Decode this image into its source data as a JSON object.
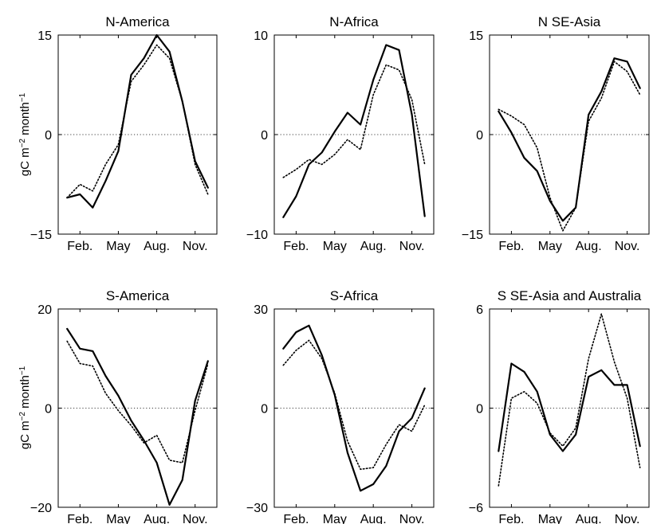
{
  "ylabel_main": "gC m",
  "ylabel_sup1": "−2",
  "ylabel_mid": " month",
  "ylabel_sup2": "−1",
  "x_tick_labels": [
    "Feb.",
    "May",
    "Aug.",
    "Nov."
  ],
  "x_tick_months": [
    2,
    5,
    8,
    11
  ],
  "chart_data": [
    {
      "type": "line",
      "title": "N-America",
      "x": [
        1,
        2,
        3,
        4,
        5,
        6,
        7,
        8,
        9,
        10,
        11,
        12
      ],
      "ylim": [
        -15,
        15
      ],
      "yticks": [
        -15,
        0,
        15
      ],
      "ytick_labels": [
        "−15",
        "0",
        "15"
      ],
      "series": [
        {
          "style": "solid",
          "values": [
            -9.5,
            -9,
            -11,
            -7,
            -2.5,
            9,
            11.5,
            15,
            12.5,
            5,
            -4,
            -8
          ]
        },
        {
          "style": "dotted",
          "values": [
            -9.5,
            -7.5,
            -8.5,
            -4.5,
            -1.5,
            8,
            10.5,
            13.5,
            11.5,
            5,
            -4.5,
            -9
          ]
        }
      ]
    },
    {
      "type": "line",
      "title": "N-Africa",
      "x": [
        1,
        2,
        3,
        4,
        5,
        6,
        7,
        8,
        9,
        10,
        11,
        12
      ],
      "ylim": [
        -10,
        10
      ],
      "yticks": [
        -10,
        0,
        10
      ],
      "ytick_labels": [
        "−10",
        "0",
        "10"
      ],
      "series": [
        {
          "style": "solid",
          "values": [
            -8.3,
            -6.2,
            -3,
            -1.8,
            0.3,
            2.2,
            1,
            5.5,
            9,
            8.5,
            2,
            -8.2
          ]
        },
        {
          "style": "dotted",
          "values": [
            -4.3,
            -3.5,
            -2.5,
            -3,
            -2,
            -0.5,
            -1.5,
            4,
            7,
            6.5,
            3.5,
            -3
          ]
        }
      ]
    },
    {
      "type": "line",
      "title": "N SE-Asia",
      "x": [
        1,
        2,
        3,
        4,
        5,
        6,
        7,
        8,
        9,
        10,
        11,
        12
      ],
      "ylim": [
        -15,
        15
      ],
      "yticks": [
        -15,
        0,
        15
      ],
      "ytick_labels": [
        "−15",
        "0",
        "15"
      ],
      "series": [
        {
          "style": "solid",
          "values": [
            3.5,
            0.3,
            -3.5,
            -5.5,
            -10,
            -13,
            -11,
            3,
            6.5,
            11.5,
            11,
            7
          ]
        },
        {
          "style": "dotted",
          "values": [
            3.8,
            2.8,
            1.5,
            -2,
            -9.5,
            -14.5,
            -11,
            2,
            5.5,
            11,
            9.5,
            6
          ]
        }
      ]
    },
    {
      "type": "line",
      "title": "S-America",
      "x": [
        1,
        2,
        3,
        4,
        5,
        6,
        7,
        8,
        9,
        10,
        11,
        12
      ],
      "ylim": [
        -20,
        20
      ],
      "yticks": [
        -20,
        0,
        20
      ],
      "ytick_labels": [
        "−20",
        "0",
        "20"
      ],
      "series": [
        {
          "style": "solid",
          "values": [
            16,
            12,
            11.5,
            6.5,
            2.5,
            -2.5,
            -6.5,
            -11,
            -19.5,
            -14.5,
            1.5,
            9.5
          ]
        },
        {
          "style": "dotted",
          "values": [
            13.5,
            9,
            8.5,
            3,
            -0.5,
            -3.5,
            -7,
            -5.5,
            -10.5,
            -11,
            -0.5,
            9
          ]
        }
      ]
    },
    {
      "type": "line",
      "title": "S-Africa",
      "x": [
        1,
        2,
        3,
        4,
        5,
        6,
        7,
        8,
        9,
        10,
        11,
        12
      ],
      "ylim": [
        -30,
        30
      ],
      "yticks": [
        -30,
        0,
        30
      ],
      "ytick_labels": [
        "−30",
        "0",
        "30"
      ],
      "series": [
        {
          "style": "solid",
          "values": [
            18,
            23,
            25,
            16,
            4,
            -13.5,
            -25,
            -23,
            -17.5,
            -7,
            -3,
            6
          ]
        },
        {
          "style": "dotted",
          "values": [
            13,
            17.5,
            20.5,
            15,
            4.5,
            -10,
            -18.5,
            -18,
            -11,
            -5,
            -7,
            1
          ]
        }
      ]
    },
    {
      "type": "line",
      "title": "S SE-Asia and Australia",
      "x": [
        1,
        2,
        3,
        4,
        5,
        6,
        7,
        8,
        9,
        10,
        11,
        12
      ],
      "ylim": [
        -6,
        6
      ],
      "yticks": [
        -6,
        0,
        6
      ],
      "ytick_labels": [
        "−6",
        "0",
        "6"
      ],
      "series": [
        {
          "style": "solid",
          "values": [
            -2.6,
            2.7,
            2.2,
            1,
            -1.6,
            -2.6,
            -1.6,
            1.9,
            2.3,
            1.4,
            1.4,
            -2.3
          ]
        },
        {
          "style": "dotted",
          "values": [
            -4.7,
            0.6,
            1,
            0.3,
            -1.5,
            -2.3,
            -1.2,
            3,
            5.7,
            2.8,
            0.6,
            -3.6
          ]
        }
      ]
    }
  ]
}
